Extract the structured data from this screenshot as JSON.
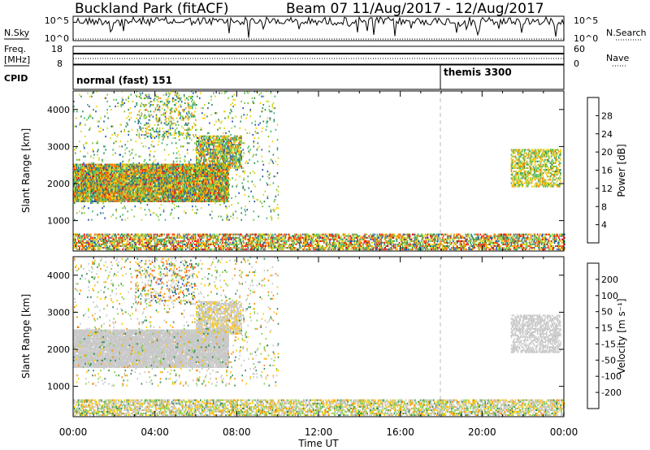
{
  "header": {
    "site_title": "Buckland Park (fitACF)",
    "beam_date": "Beam 07  11/Aug/2017 - 12/Aug/2017"
  },
  "top_panels": {
    "nsky_label": "N.Sky",
    "nsky_ticks": [
      "10^5",
      "10^0"
    ],
    "nsearch_label": "N.Search",
    "nsearch_ticks": [
      "10^5",
      "10^0"
    ],
    "freq_label": "Freq.",
    "freq_unit": "[MHz]",
    "freq_ticks": [
      "18",
      "8"
    ],
    "nave_label": "Nave",
    "nave_ticks": [
      "60",
      "0"
    ],
    "cpid_label": "CPID",
    "cpid_segments": [
      {
        "label": "normal (fast) 151",
        "start_hour": 0
      },
      {
        "label": "themis 3300",
        "start_hour": 18
      }
    ]
  },
  "chart_data": [
    {
      "type": "heatmap",
      "name": "power",
      "ylabel": "Slant Range [km]",
      "yticks": [
        "4000",
        "3000",
        "2000",
        "1000"
      ],
      "ylim": [
        180,
        4500
      ],
      "xlim": [
        0,
        24
      ],
      "xlabel": "",
      "colorbar": {
        "label": "Power [dB]",
        "ticks": [
          "28",
          "24",
          "20",
          "16",
          "12",
          "8",
          "4"
        ],
        "range": [
          0,
          30
        ],
        "colors": [
          "#0000ff",
          "#1f4fb4",
          "#2e8b57",
          "#3cb371",
          "#7fc241",
          "#ccd82a",
          "#ffcc00",
          "#ff8c00",
          "#ff4500",
          "#ff0000"
        ]
      },
      "scatter_regions": [
        {
          "t": [
            0.0,
            7.6
          ],
          "r": [
            1500,
            2500
          ],
          "density": 0.9,
          "value": [
            4,
            28
          ]
        },
        {
          "t": [
            6.0,
            8.2
          ],
          "r": [
            2400,
            3300
          ],
          "density": 0.6,
          "value": [
            4,
            26
          ]
        },
        {
          "t": [
            0.0,
            24.0
          ],
          "r": [
            200,
            620
          ],
          "density": 0.55,
          "value": [
            4,
            30
          ]
        },
        {
          "t": [
            21.4,
            23.8
          ],
          "r": [
            1900,
            2900
          ],
          "density": 0.5,
          "value": [
            8,
            24
          ]
        },
        {
          "t": [
            3.0,
            6.0
          ],
          "r": [
            3200,
            4400
          ],
          "density": 0.15,
          "value": [
            4,
            24
          ]
        },
        {
          "t": [
            0.0,
            10.0
          ],
          "r": [
            1000,
            4500
          ],
          "density": 0.05,
          "value": [
            4,
            20
          ]
        }
      ]
    },
    {
      "type": "heatmap",
      "name": "velocity",
      "ylabel": "Slant Range [km]",
      "yticks": [
        "4000",
        "3000",
        "2000",
        "1000"
      ],
      "ylim": [
        180,
        4500
      ],
      "xlim": [
        0,
        24
      ],
      "xlabel": "Time UT",
      "xticks": [
        "00:00",
        "04:00",
        "08:00",
        "12:00",
        "16:00",
        "20:00",
        "00:00"
      ],
      "colorbar": {
        "label": "Velocity [m s⁻¹]",
        "ticks": [
          "200",
          "100",
          "50",
          "15",
          "-15",
          "-50",
          "-100",
          "-200"
        ],
        "range": [
          -250,
          250
        ],
        "colors": [
          "#ff0000",
          "#ff4500",
          "#ff8c00",
          "#ffc800",
          "#c8c8c8",
          "#c8c8c8",
          "#7fd04a",
          "#2e8b57",
          "#1f4fb4",
          "#0000ff"
        ]
      },
      "scatter_regions": [
        {
          "t": [
            0.0,
            7.6
          ],
          "r": [
            1500,
            2500
          ],
          "density": 0.9,
          "value": [
            -20,
            20
          ]
        },
        {
          "t": [
            6.0,
            8.2
          ],
          "r": [
            2400,
            3300
          ],
          "density": 0.6,
          "value": [
            -80,
            40
          ]
        },
        {
          "t": [
            0.0,
            24.0
          ],
          "r": [
            200,
            620
          ],
          "density": 0.55,
          "value": [
            -120,
            120
          ]
        },
        {
          "t": [
            21.4,
            23.8
          ],
          "r": [
            1900,
            2900
          ],
          "density": 0.5,
          "value": [
            -20,
            30
          ]
        },
        {
          "t": [
            3.0,
            6.0
          ],
          "r": [
            3200,
            4400
          ],
          "density": 0.15,
          "value": [
            -200,
            200
          ]
        },
        {
          "t": [
            0.0,
            10.0
          ],
          "r": [
            1000,
            4500
          ],
          "density": 0.05,
          "value": [
            -150,
            150
          ]
        }
      ]
    }
  ],
  "colors": {
    "axis": "#000000",
    "dashed_marker": "#bbbbbb"
  }
}
